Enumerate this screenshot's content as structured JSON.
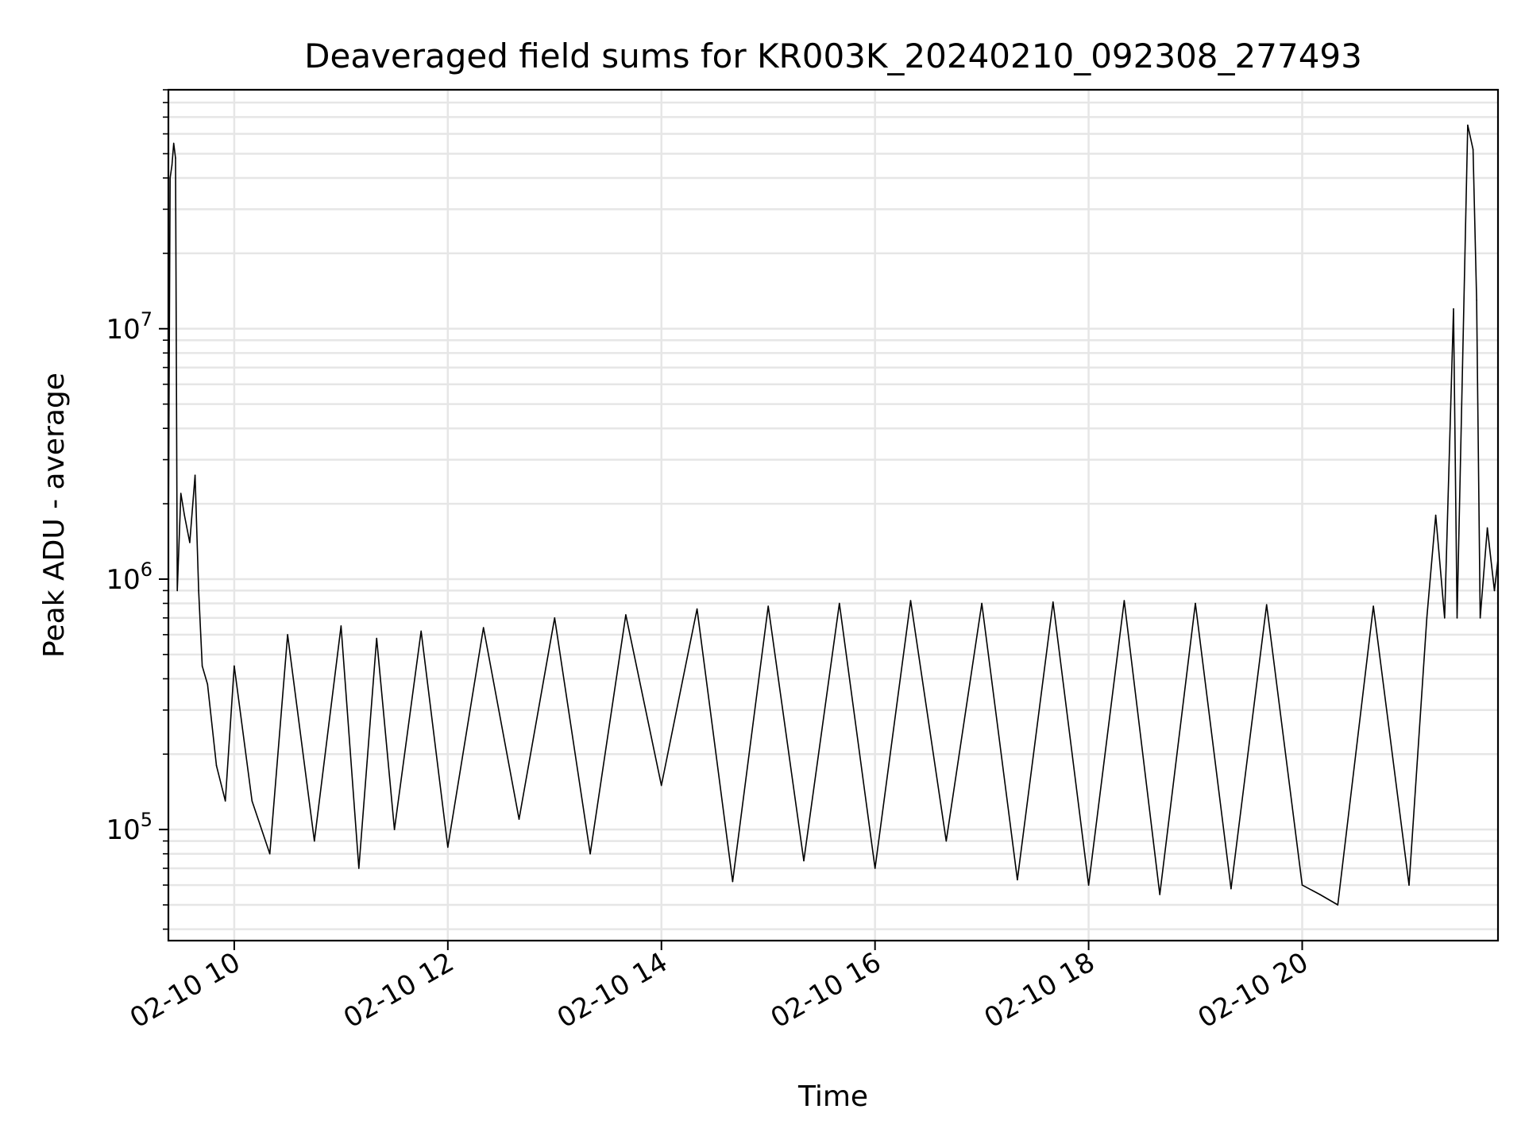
{
  "chart_data": {
    "type": "line",
    "title": "Deaveraged field sums for KR003K_20240210_092308_277493",
    "xlabel": "Time",
    "ylabel": "Peak ADU - average",
    "xscale": "time",
    "yscale": "log",
    "grid": true,
    "legend": "none",
    "line_color": "#000000",
    "grid_color": "#e6e6e6",
    "xlim": [
      "2024-02-10 09:23",
      "2024-02-10 21:50"
    ],
    "ylim": [
      36000,
      90000000
    ],
    "x_ticks": [
      {
        "value": "2024-02-10 10:00",
        "label": "02-10 10"
      },
      {
        "value": "2024-02-10 12:00",
        "label": "02-10 12"
      },
      {
        "value": "2024-02-10 14:00",
        "label": "02-10 14"
      },
      {
        "value": "2024-02-10 16:00",
        "label": "02-10 16"
      },
      {
        "value": "2024-02-10 18:00",
        "label": "02-10 18"
      },
      {
        "value": "2024-02-10 20:00",
        "label": "02-10 20"
      }
    ],
    "y_ticks": [
      {
        "value": 100000,
        "base": "10",
        "exp": "5"
      },
      {
        "value": 1000000,
        "base": "10",
        "exp": "6"
      },
      {
        "value": 10000000,
        "base": "10",
        "exp": "7"
      }
    ],
    "series": [
      {
        "points": [
          [
            "2024-02-10 09:23",
            1500000
          ],
          [
            "2024-02-10 09:24",
            40000000
          ],
          [
            "2024-02-10 09:25",
            45000000
          ],
          [
            "2024-02-10 09:26",
            55000000
          ],
          [
            "2024-02-10 09:27",
            48000000
          ],
          [
            "2024-02-10 09:28",
            900000
          ],
          [
            "2024-02-10 09:30",
            2200000
          ],
          [
            "2024-02-10 09:32",
            1800000
          ],
          [
            "2024-02-10 09:35",
            1400000
          ],
          [
            "2024-02-10 09:38",
            2600000
          ],
          [
            "2024-02-10 09:40",
            900000
          ],
          [
            "2024-02-10 09:42",
            450000
          ],
          [
            "2024-02-10 09:45",
            380000
          ],
          [
            "2024-02-10 09:50",
            180000
          ],
          [
            "2024-02-10 09:55",
            130000
          ],
          [
            "2024-02-10 10:00",
            450000
          ],
          [
            "2024-02-10 10:10",
            130000
          ],
          [
            "2024-02-10 10:20",
            80000
          ],
          [
            "2024-02-10 10:30",
            600000
          ],
          [
            "2024-02-10 10:45",
            90000
          ],
          [
            "2024-02-10 11:00",
            650000
          ],
          [
            "2024-02-10 11:10",
            70000
          ],
          [
            "2024-02-10 11:20",
            580000
          ],
          [
            "2024-02-10 11:30",
            100000
          ],
          [
            "2024-02-10 11:45",
            620000
          ],
          [
            "2024-02-10 12:00",
            85000
          ],
          [
            "2024-02-10 12:20",
            640000
          ],
          [
            "2024-02-10 12:40",
            110000
          ],
          [
            "2024-02-10 13:00",
            700000
          ],
          [
            "2024-02-10 13:20",
            80000
          ],
          [
            "2024-02-10 13:40",
            720000
          ],
          [
            "2024-02-10 14:00",
            150000
          ],
          [
            "2024-02-10 14:20",
            760000
          ],
          [
            "2024-02-10 14:40",
            62000
          ],
          [
            "2024-02-10 15:00",
            780000
          ],
          [
            "2024-02-10 15:20",
            75000
          ],
          [
            "2024-02-10 15:40",
            800000
          ],
          [
            "2024-02-10 16:00",
            70000
          ],
          [
            "2024-02-10 16:20",
            820000
          ],
          [
            "2024-02-10 16:40",
            90000
          ],
          [
            "2024-02-10 17:00",
            800000
          ],
          [
            "2024-02-10 17:20",
            63000
          ],
          [
            "2024-02-10 17:40",
            810000
          ],
          [
            "2024-02-10 18:00",
            60000
          ],
          [
            "2024-02-10 18:20",
            820000
          ],
          [
            "2024-02-10 18:40",
            55000
          ],
          [
            "2024-02-10 19:00",
            800000
          ],
          [
            "2024-02-10 19:20",
            58000
          ],
          [
            "2024-02-10 19:40",
            790000
          ],
          [
            "2024-02-10 20:00",
            60000
          ],
          [
            "2024-02-10 20:10",
            55000
          ],
          [
            "2024-02-10 20:20",
            50000
          ],
          [
            "2024-02-10 20:40",
            780000
          ],
          [
            "2024-02-10 21:00",
            60000
          ],
          [
            "2024-02-10 21:10",
            700000
          ],
          [
            "2024-02-10 21:15",
            1800000
          ],
          [
            "2024-02-10 21:20",
            700000
          ],
          [
            "2024-02-10 21:25",
            12000000
          ],
          [
            "2024-02-10 21:27",
            700000
          ],
          [
            "2024-02-10 21:33",
            65000000
          ],
          [
            "2024-02-10 21:36",
            52000000
          ],
          [
            "2024-02-10 21:38",
            13000000
          ],
          [
            "2024-02-10 21:40",
            700000
          ],
          [
            "2024-02-10 21:44",
            1600000
          ],
          [
            "2024-02-10 21:48",
            900000
          ],
          [
            "2024-02-10 21:50",
            1200000
          ]
        ]
      }
    ]
  }
}
